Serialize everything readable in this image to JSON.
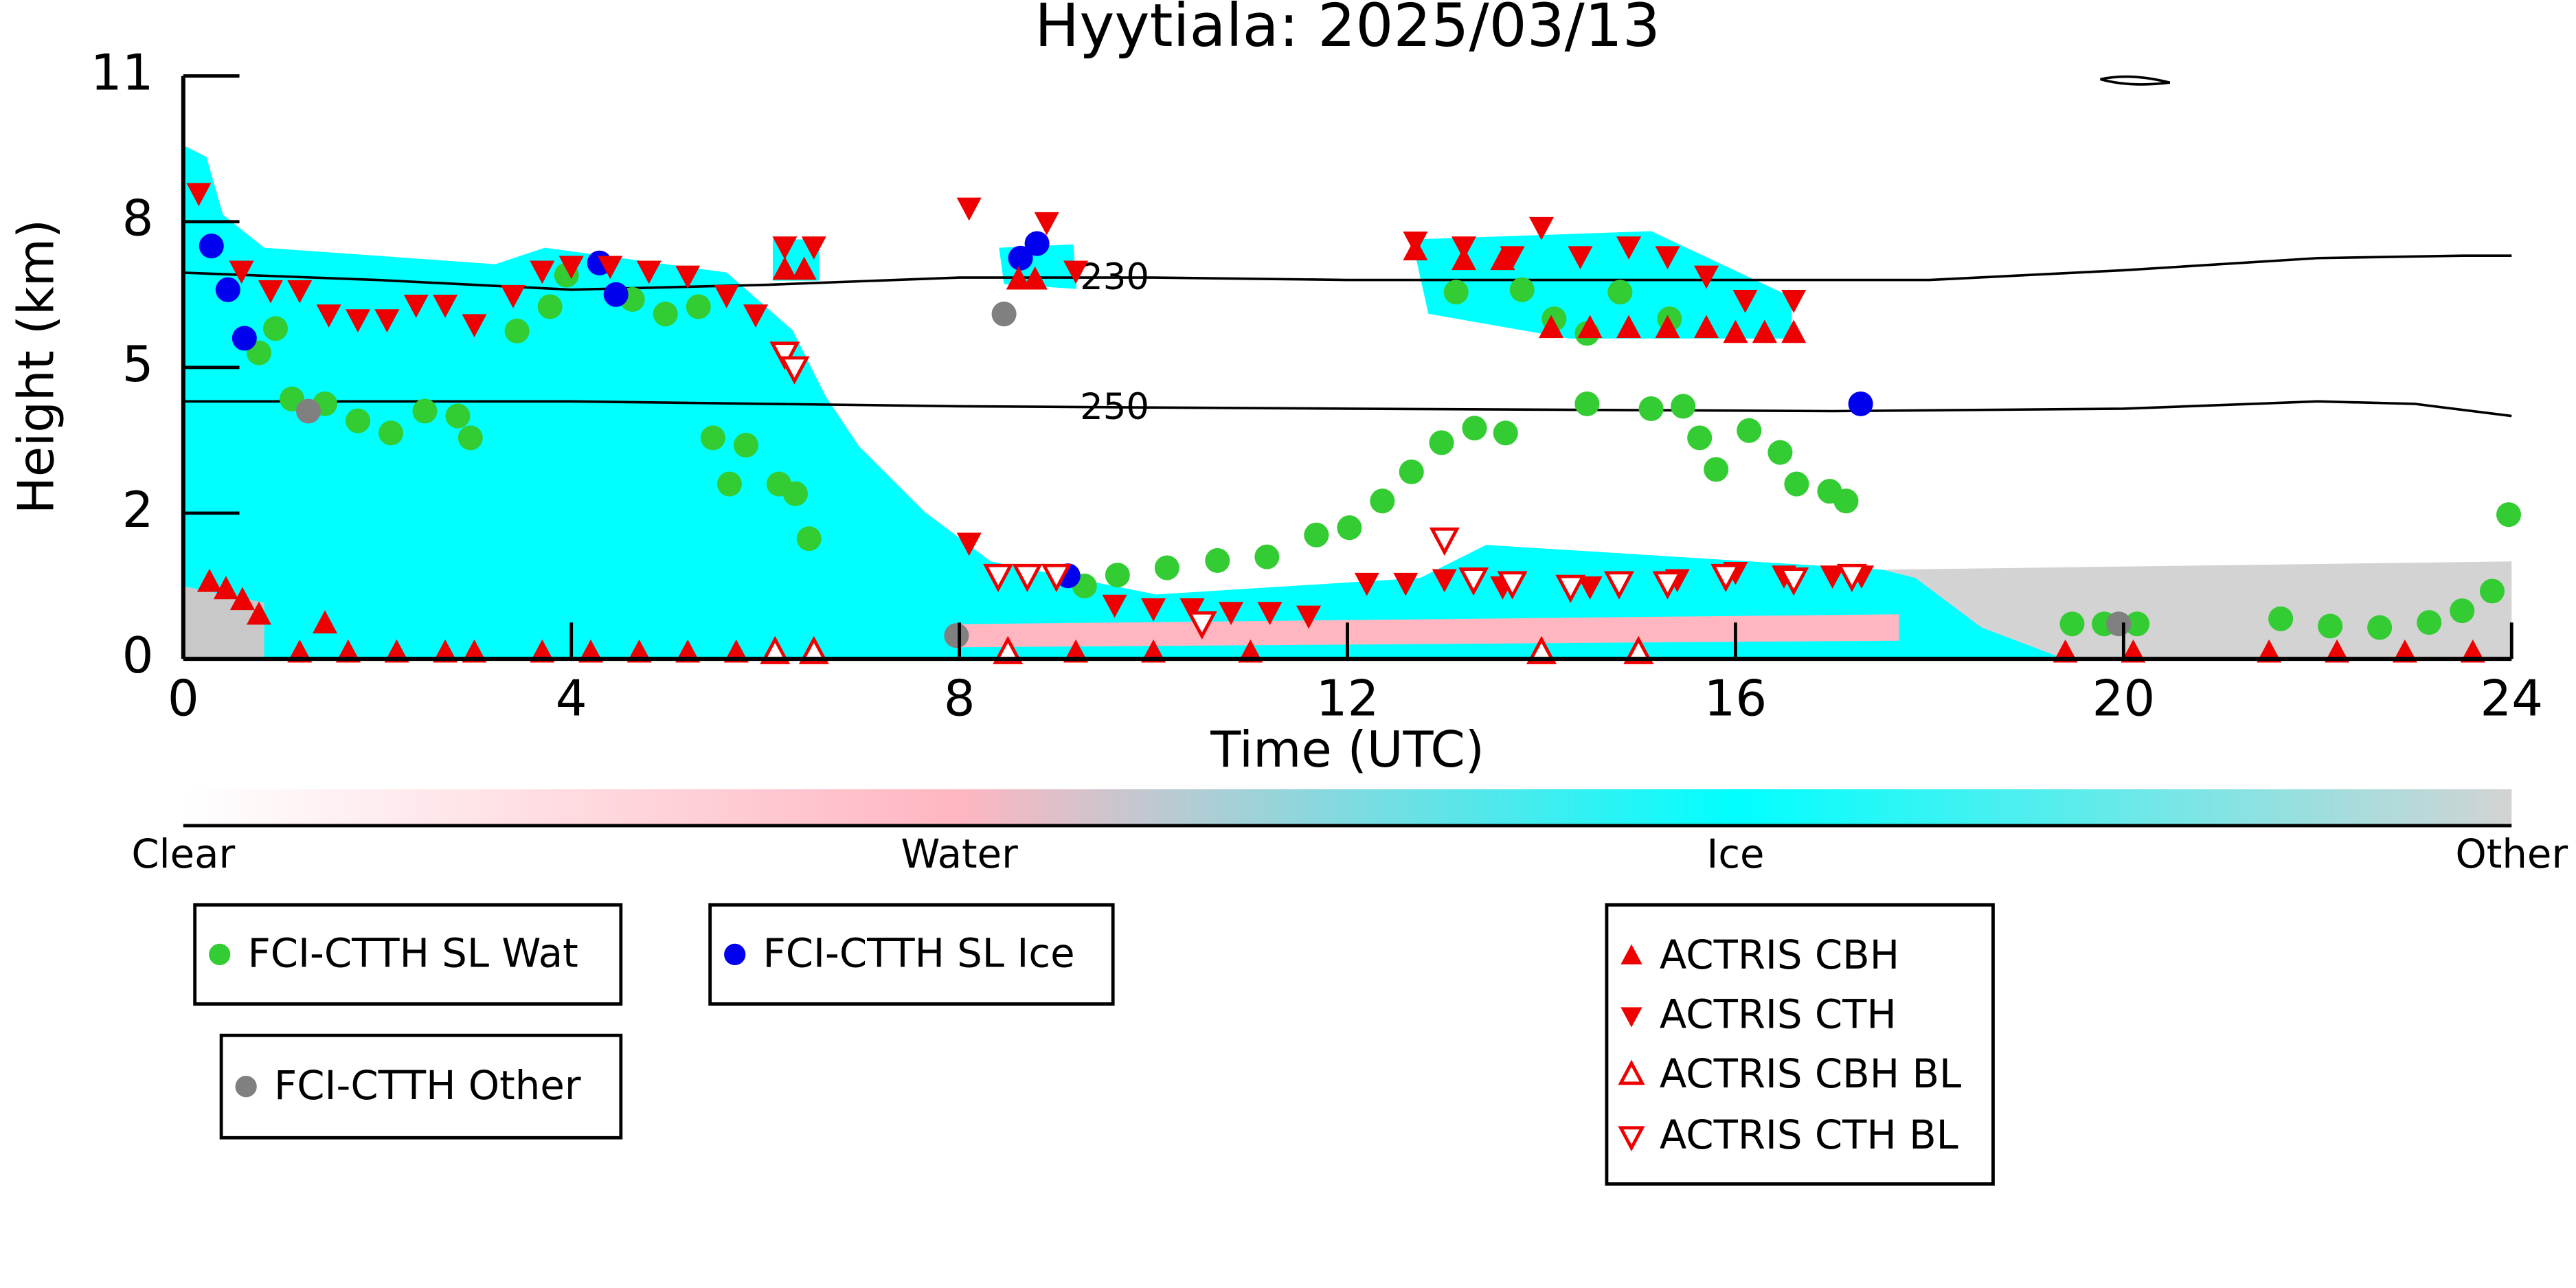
{
  "chart_data": {
    "type": "scatter",
    "title": "Hyytiala: 2025/03/13",
    "xlabel": "Time (UTC)",
    "ylabel": "Height (km)",
    "xlim": [
      0,
      24
    ],
    "xticks": [
      0,
      4,
      8,
      12,
      16,
      20,
      24
    ],
    "ylim": [
      0,
      11
    ],
    "yticks": [
      0,
      2,
      5,
      8,
      11
    ],
    "yscale": "tick-spaced",
    "colorbar": {
      "labels": [
        "Clear",
        "Water",
        "Ice",
        "Other"
      ]
    },
    "contours": [
      {
        "label": "230",
        "color": "#000000",
        "x": [
          0,
          2,
          4,
          6,
          8,
          10,
          12,
          14,
          16,
          18,
          20,
          22,
          23.5,
          24
        ],
        "y": [
          6.95,
          6.8,
          6.6,
          6.7,
          6.85,
          6.85,
          6.8,
          6.8,
          6.8,
          6.8,
          7.0,
          7.25,
          7.3,
          7.3
        ]
      },
      {
        "label": "250",
        "color": "#000000",
        "x": [
          0,
          4,
          8,
          12,
          17,
          20,
          22,
          23,
          24
        ],
        "y": [
          4.3,
          4.3,
          4.2,
          4.15,
          4.1,
          4.15,
          4.3,
          4.25,
          4.0
        ]
      }
    ],
    "series": [
      {
        "name": "FCI-CTTH SL Wat",
        "color": "#33cc33",
        "marker": "circle",
        "filled": true,
        "x": [
          0.95,
          0.78,
          1.12,
          1.46,
          1.8,
          2.14,
          2.49,
          2.83,
          2.96,
          3.44,
          3.78,
          3.95,
          4.63,
          4.97,
          5.31,
          5.46,
          5.63,
          5.8,
          6.14,
          6.31,
          6.45,
          9.29,
          9.63,
          10.14,
          10.66,
          11.17,
          11.68,
          12.02,
          12.36,
          12.66,
          12.97,
          13.31,
          13.63,
          13.12,
          13.8,
          14.13,
          14.47,
          14.81,
          15.32,
          14.47,
          15.13,
          15.46,
          15.63,
          15.8,
          16.14,
          16.46,
          16.63,
          16.97,
          17.14,
          19.47,
          19.8,
          20.14,
          21.62,
          22.13,
          22.64,
          23.15,
          23.49,
          23.8,
          23.97
        ],
        "y": [
          5.8,
          5.3,
          4.35,
          4.25,
          3.9,
          3.65,
          4.1,
          4.0,
          3.55,
          5.75,
          6.25,
          6.9,
          6.4,
          6.1,
          6.25,
          3.55,
          2.6,
          3.4,
          2.6,
          2.4,
          1.65,
          1.0,
          1.15,
          1.25,
          1.35,
          1.4,
          1.7,
          1.8,
          2.25,
          2.85,
          3.45,
          3.75,
          3.65,
          6.55,
          6.6,
          6.0,
          5.7,
          6.55,
          6.0,
          4.25,
          4.15,
          4.2,
          3.55,
          2.9,
          3.7,
          3.25,
          2.6,
          2.45,
          2.25,
          0.48,
          0.48,
          0.48,
          0.55,
          0.45,
          0.43,
          0.5,
          0.66,
          0.93,
          1.98
        ]
      },
      {
        "name": "FCI-CTTH SL Ice",
        "color": "#0000ee",
        "marker": "circle",
        "filled": true,
        "x": [
          0.29,
          0.46,
          0.63,
          4.29,
          4.46,
          8.63,
          8.8,
          9.12,
          17.29
        ],
        "y": [
          7.5,
          6.6,
          5.6,
          7.15,
          6.5,
          7.25,
          7.55,
          1.14,
          4.25
        ]
      },
      {
        "name": "FCI-CTTH Other",
        "color": "#808080",
        "marker": "circle",
        "filled": true,
        "x": [
          1.29,
          8.46,
          7.97,
          19.95
        ],
        "y": [
          4.1,
          6.1,
          0.32,
          0.48
        ]
      },
      {
        "name": "ACTRIS CBH",
        "color": "#ee0000",
        "marker": "triangle-up",
        "filled": true,
        "x": [
          0.27,
          0.44,
          0.61,
          0.78,
          1.46,
          1.2,
          1.7,
          2.2,
          2.7,
          3.0,
          3.7,
          4.2,
          4.7,
          5.2,
          5.7,
          6.2,
          6.4,
          8.61,
          8.78,
          9.2,
          10.0,
          11.0,
          12.7,
          13.2,
          13.6,
          14.1,
          14.5,
          14.9,
          15.3,
          15.7,
          16.0,
          16.3,
          16.6,
          19.4,
          20.1,
          21.5,
          22.2,
          22.9,
          23.6
        ],
        "y": [
          1.05,
          0.95,
          0.8,
          0.6,
          0.48,
          0.08,
          0.08,
          0.08,
          0.08,
          0.08,
          0.08,
          0.08,
          0.08,
          0.08,
          0.08,
          7.0,
          7.0,
          6.8,
          6.8,
          0.08,
          0.08,
          0.08,
          7.4,
          7.2,
          7.2,
          5.8,
          5.8,
          5.8,
          5.8,
          5.8,
          5.7,
          5.7,
          5.7,
          0.08,
          0.08,
          0.08,
          0.08,
          0.08,
          0.08
        ]
      },
      {
        "name": "ACTRIS CTH",
        "color": "#ee0000",
        "marker": "triangle-down",
        "filled": true,
        "x": [
          0.16,
          0.6,
          0.9,
          1.2,
          1.5,
          1.8,
          2.1,
          2.4,
          2.7,
          3.0,
          3.4,
          3.7,
          4.0,
          4.4,
          4.8,
          5.2,
          5.6,
          5.9,
          6.2,
          6.5,
          8.1,
          8.9,
          9.2,
          9.6,
          10.0,
          10.4,
          10.8,
          11.2,
          11.6,
          12.2,
          12.6,
          13.0,
          12.7,
          13.2,
          13.7,
          14.0,
          14.4,
          14.9,
          15.3,
          15.7,
          16.1,
          16.6,
          17.0,
          17.3,
          13.6,
          14.5,
          15.4,
          16.0,
          16.5,
          8.1
        ],
        "y": [
          8.6,
          7.0,
          6.6,
          6.6,
          6.1,
          6.0,
          6.0,
          6.3,
          6.3,
          5.9,
          6.5,
          7.0,
          7.1,
          7.1,
          7.0,
          6.9,
          6.5,
          6.1,
          7.5,
          7.5,
          8.3,
          8.0,
          7.0,
          0.75,
          0.7,
          0.7,
          0.65,
          0.65,
          0.6,
          1.05,
          1.05,
          1.1,
          7.6,
          7.5,
          7.3,
          7.9,
          7.3,
          7.5,
          7.3,
          6.9,
          6.4,
          6.4,
          1.15,
          1.15,
          1.0,
          1.0,
          1.1,
          1.2,
          1.15,
          1.6
        ]
      },
      {
        "name": "ACTRIS CBH BL",
        "color": "#ee0000",
        "marker": "triangle-up",
        "filled": false,
        "x": [
          6.1,
          6.5,
          8.5,
          14.0,
          15.0
        ],
        "y": [
          0.08,
          0.08,
          0.08,
          0.08,
          0.08
        ]
      },
      {
        "name": "ACTRIS CTH BL",
        "color": "#ee0000",
        "marker": "triangle-down",
        "filled": false,
        "x": [
          6.2,
          6.3,
          8.4,
          8.7,
          9.0,
          13.0,
          13.3,
          13.7,
          14.3,
          14.8,
          15.3,
          15.9,
          16.6,
          17.2,
          10.5
        ],
        "y": [
          5.3,
          5.0,
          1.15,
          1.15,
          1.15,
          1.65,
          1.1,
          1.05,
          1.0,
          1.05,
          1.05,
          1.15,
          1.1,
          1.15,
          0.5
        ]
      }
    ]
  }
}
